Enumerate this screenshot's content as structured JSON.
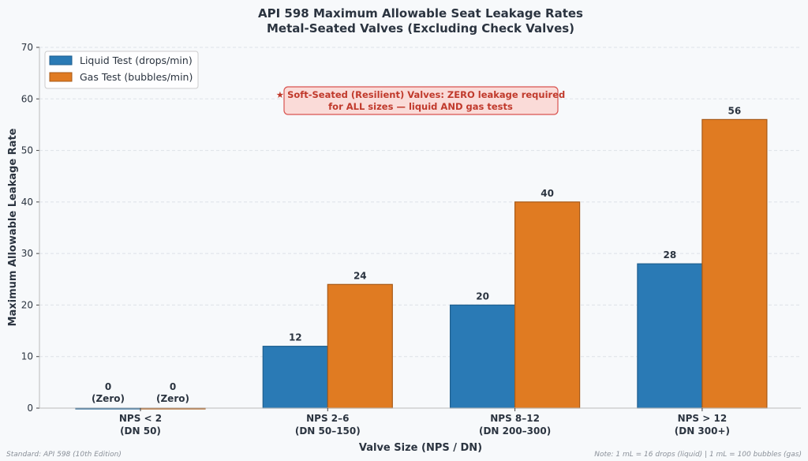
{
  "chart_data": {
    "type": "bar",
    "title": "API 598 Maximum Allowable Seat Leakage Rates",
    "subtitle": "Metal-Seated Valves (Excluding Check Valves)",
    "xlabel": "Valve Size (NPS / DN)",
    "ylabel": "Maximum Allowable Leakage Rate",
    "ylim": [
      0,
      70
    ],
    "yticks": [
      0,
      10,
      20,
      30,
      40,
      50,
      60,
      70
    ],
    "grid": true,
    "legend_placement": "top-left",
    "categories": [
      [
        "NPS < 2",
        "(DN 50)"
      ],
      [
        "NPS 2–6",
        "(DN 50–150)"
      ],
      [
        "NPS 8–12",
        "(DN 200–300)"
      ],
      [
        "NPS > 12",
        "(DN 300+)"
      ]
    ],
    "series": [
      {
        "name": "Liquid Test (drops/min)",
        "color": "#2a7ab5",
        "values": [
          0,
          12,
          20,
          28
        ],
        "labels": [
          "0\n(Zero)",
          "12",
          "20",
          "28"
        ]
      },
      {
        "name": "Gas Test (bubbles/min)",
        "color": "#e07b22",
        "values": [
          0,
          24,
          40,
          56
        ],
        "labels": [
          "0\n(Zero)",
          "24",
          "40",
          "56"
        ]
      }
    ],
    "annotation": [
      "★ Soft-Seated (Resilient) Valves: ZERO leakage required",
      "for ALL sizes — liquid AND gas tests"
    ],
    "footnote_left": "Standard: API 598 (10th Edition)",
    "footnote_right": "Note: 1 mL = 16 drops (liquid) | 1 mL = 100 bubbles (gas)"
  }
}
